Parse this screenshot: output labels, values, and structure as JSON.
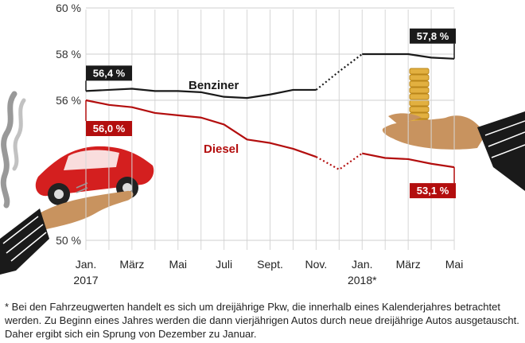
{
  "chart_data": {
    "type": "line",
    "x": [
      "Jan. 2017",
      "Feb. 2017",
      "März 2017",
      "Apr. 2017",
      "Mai 2017",
      "Jun. 2017",
      "Juli 2017",
      "Aug. 2017",
      "Sept. 2017",
      "Okt. 2017",
      "Nov. 2017",
      "Dez. 2017",
      "Jan. 2018",
      "Feb. 2018",
      "März 2018",
      "Apr. 2018",
      "Mai 2018"
    ],
    "x_ticks": [
      {
        "line1": "Jan.",
        "line2": "2017"
      },
      {
        "line1": "März",
        "line2": ""
      },
      {
        "line1": "Mai",
        "line2": ""
      },
      {
        "line1": "Juli",
        "line2": ""
      },
      {
        "line1": "Sept.",
        "line2": ""
      },
      {
        "line1": "Nov.",
        "line2": ""
      },
      {
        "line1": "Jan.",
        "line2": "2018*"
      },
      {
        "line1": "März",
        "line2": ""
      },
      {
        "line1": "Mai",
        "line2": ""
      }
    ],
    "y_ticks": [
      "60 %",
      "58 %",
      "56 %",
      "50 %"
    ],
    "ylim": [
      50,
      60
    ],
    "series": [
      {
        "name": "Benziner",
        "color": "#1a1a1a",
        "values": [
          56.4,
          56.45,
          56.5,
          56.4,
          56.4,
          56.35,
          56.15,
          56.1,
          56.25,
          56.45,
          56.45,
          57.25,
          58.0,
          58.0,
          58.0,
          57.85,
          57.8
        ],
        "label_start": "56,4 %",
        "label_end": "57,8 %"
      },
      {
        "name": "Diesel",
        "color": "#b30e0e",
        "values": [
          56.0,
          55.8,
          55.7,
          55.45,
          55.35,
          55.25,
          54.95,
          54.3,
          54.15,
          53.9,
          53.55,
          53.0,
          53.7,
          53.5,
          53.45,
          53.25,
          53.1
        ],
        "label_start": "56,0 %",
        "label_end": "53,1 %"
      }
    ],
    "grid": "vertical lines at every month, horizontal lines at 60, 58, 56 and 50 %",
    "y_axis_break": true,
    "year_break": "dotted segment from Nov. 2017 to Jan. 2018"
  },
  "footnote": "* Bei den Fahrzeugwerten handelt es sich um dreijährige Pkw, die innerhalb eines Kalenderjahres betrachtet werden. Zu Beginn eines Jahres werden die dann vierjährigen Autos durch neue dreijährige Autos ausgetauscht. Daher ergibt sich ein Sprung von Dezember zu Januar."
}
